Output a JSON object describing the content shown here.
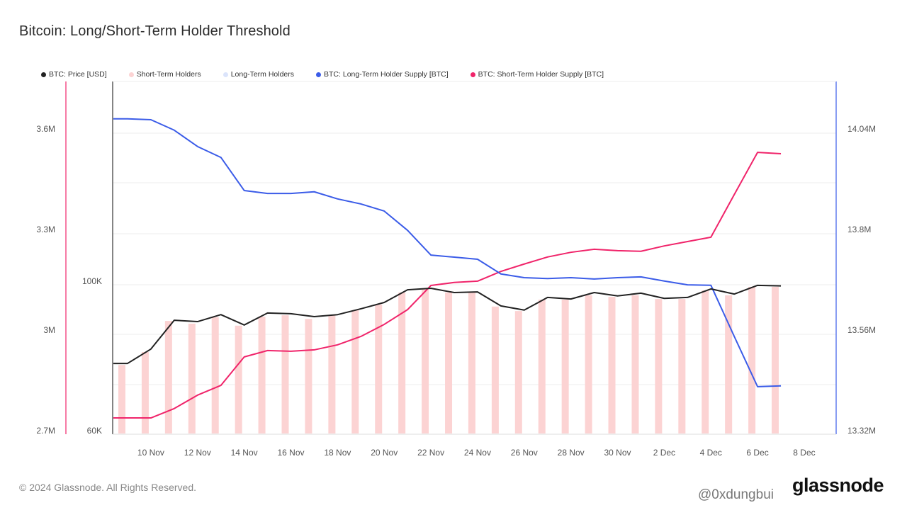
{
  "title": "Bitcoin: Long/Short-Term Holder Threshold",
  "footer": "© 2024 Glassnode. All Rights Reserved.",
  "logo": "glassnode",
  "watermark": "@0xdungbui",
  "chart_data": {
    "type": "line",
    "title": "Bitcoin: Long/Short-Term Holder Threshold",
    "legend_position": "top-left",
    "grid": true,
    "legend": [
      {
        "name": "BTC: Price [USD]",
        "color": "#222222"
      },
      {
        "name": "Short-Term Holders",
        "color": "#fcd3d3"
      },
      {
        "name": "Long-Term Holders",
        "color": "#dbe4fb"
      },
      {
        "name": "BTC: Long-Term Holder Supply [BTC]",
        "color": "#3b5ce8"
      },
      {
        "name": "BTC: Short-Term Holder Supply [BTC]",
        "color": "#f0246a"
      }
    ],
    "x": [
      "9 Nov",
      "10 Nov",
      "11 Nov",
      "12 Nov",
      "13 Nov",
      "14 Nov",
      "15 Nov",
      "16 Nov",
      "17 Nov",
      "18 Nov",
      "19 Nov",
      "20 Nov",
      "21 Nov",
      "22 Nov",
      "23 Nov",
      "24 Nov",
      "25 Nov",
      "26 Nov",
      "27 Nov",
      "28 Nov",
      "29 Nov",
      "30 Nov",
      "1 Dec",
      "2 Dec",
      "3 Dec",
      "4 Dec",
      "5 Dec",
      "6 Dec",
      "7 Dec"
    ],
    "x_ticks": [
      "10 Nov",
      "12 Nov",
      "14 Nov",
      "16 Nov",
      "18 Nov",
      "20 Nov",
      "22 Nov",
      "24 Nov",
      "26 Nov",
      "28 Nov",
      "30 Nov",
      "2 Dec",
      "4 Dec",
      "6 Dec",
      "8 Dec"
    ],
    "axes": {
      "sth_supply": {
        "side": "left-outer",
        "ticks": [
          "2.7M",
          "3M",
          "3.3M",
          "3.6M"
        ],
        "tick_values": [
          2700000,
          3000000,
          3300000,
          3600000
        ],
        "range": [
          2700000,
          3600000
        ],
        "color": "#f0246a"
      },
      "price": {
        "side": "left-inner",
        "scale": "log",
        "ticks": [
          "60K",
          "100K"
        ],
        "tick_values": [
          60000,
          100000
        ],
        "color": "#222222"
      },
      "lth_supply": {
        "side": "right",
        "ticks": [
          "13.32M",
          "13.56M",
          "13.8M",
          "14.04M"
        ],
        "tick_values": [
          13320000,
          13560000,
          13800000,
          14040000
        ],
        "range": [
          13320000,
          14040000
        ],
        "color": "#3b5ce8"
      }
    },
    "series": [
      {
        "name": "BTC: Price [USD]",
        "type": "line",
        "axis": "price",
        "color": "#222222",
        "values": [
          75500,
          79300,
          87500,
          87100,
          89200,
          86100,
          89700,
          89500,
          88600,
          89200,
          91000,
          93000,
          97100,
          97600,
          96200,
          96400,
          91900,
          90600,
          94600,
          94100,
          96200,
          95100,
          96000,
          94300,
          94600,
          97400,
          95700,
          98600,
          98400
        ]
      },
      {
        "name": "Short-Term Holders",
        "type": "bar",
        "axis": "price",
        "color": "#fcd3d3",
        "values": [
          75100,
          78500,
          87300,
          86500,
          88400,
          85900,
          88600,
          89000,
          87900,
          89000,
          90600,
          92300,
          96200,
          97400,
          96200,
          96200,
          91700,
          90300,
          93900,
          93900,
          95300,
          94800,
          95300,
          94100,
          94100,
          96900,
          95300,
          98100,
          98100
        ]
      },
      {
        "name": "BTC: Long-Term Holder Supply [BTC]",
        "type": "line",
        "axis": "lth_supply",
        "color": "#3b5ce8",
        "values": [
          14064000,
          14062000,
          14037000,
          13998000,
          13972000,
          13893000,
          13886000,
          13886000,
          13890000,
          13873000,
          13861000,
          13844000,
          13798000,
          13739000,
          13734000,
          13729000,
          13694000,
          13685000,
          13683000,
          13685000,
          13682000,
          13685000,
          13687000,
          13677000,
          13668000,
          13667000,
          13545000,
          13425000,
          13427000
        ]
      },
      {
        "name": "BTC: Short-Term Holder Supply [BTC]",
        "type": "line",
        "axis": "sth_supply",
        "color": "#f0246a",
        "values": [
          2738000,
          2738000,
          2766000,
          2806000,
          2835000,
          2920000,
          2939000,
          2937000,
          2941000,
          2956000,
          2981000,
          3017000,
          3061000,
          3133000,
          3142000,
          3146000,
          3175000,
          3197000,
          3218000,
          3232000,
          3241000,
          3237000,
          3235000,
          3251000,
          3264000,
          3277000,
          3404000,
          3530000,
          3526000
        ]
      }
    ]
  }
}
